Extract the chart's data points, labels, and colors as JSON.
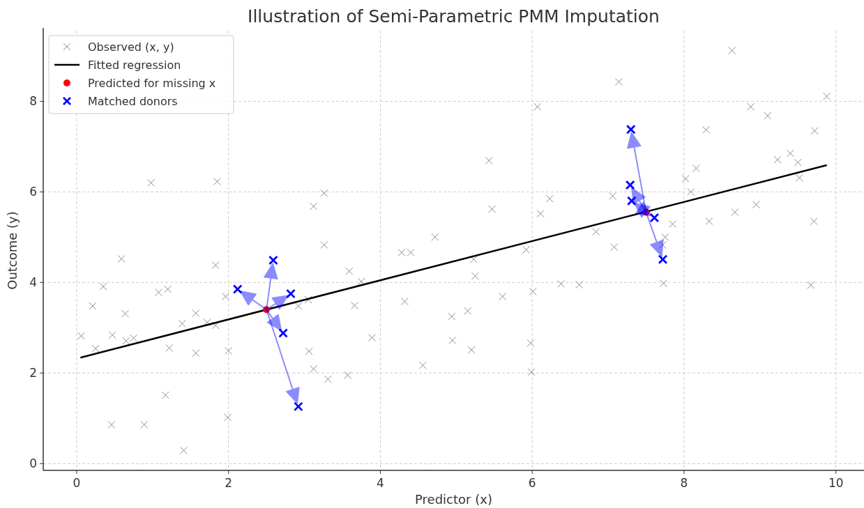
{
  "chart_data": {
    "type": "scatter",
    "title": "Illustration of Semi-Parametric PMM Imputation",
    "xlabel": "Predictor (x)",
    "ylabel": "Outcome (y)",
    "xlim": [
      -0.44,
      10.37
    ],
    "ylim": [
      -0.15,
      9.56
    ],
    "xticks": [
      0,
      2,
      4,
      6,
      8,
      10
    ],
    "yticks": [
      0,
      2,
      4,
      6,
      8
    ],
    "grid": true,
    "legend": "top left",
    "series": [
      {
        "name": "Observed (x, y)",
        "marker": "cross",
        "color": "#8c8c8c",
        "x": [
          0.98,
          1.85,
          0.59,
          1.83,
          0.35,
          1.08,
          1.2,
          1.96,
          0.21,
          0.64,
          1.57,
          1.39,
          1.72,
          1.83,
          0.06,
          0.47,
          0.65,
          0.75,
          0.25,
          1.22,
          1.57,
          2.0,
          2.92,
          3.05,
          1.17,
          1.99,
          0.46,
          0.89,
          1.41,
          3.12,
          3.26,
          3.26,
          3.06,
          3.12,
          3.31,
          3.57,
          3.59,
          3.66,
          3.75,
          3.89,
          4.28,
          4.4,
          4.32,
          4.56,
          4.72,
          4.94,
          4.95,
          5.15,
          5.2,
          5.23,
          5.25,
          5.43,
          5.47,
          5.61,
          5.92,
          6.01,
          5.98,
          5.99,
          6.07,
          6.11,
          6.23,
          6.38,
          6.62,
          7.14,
          8.63,
          9.88,
          8.88,
          9.1,
          8.29,
          9.72,
          9.4,
          9.23,
          9.5,
          8.16,
          9.52,
          8.02,
          8.09,
          7.06,
          8.95,
          8.67,
          8.33,
          9.71,
          7.85,
          6.84,
          7.75,
          7.08,
          7.72,
          7.73,
          9.67
        ],
        "values": [
          6.2,
          6.23,
          4.52,
          4.38,
          3.91,
          3.78,
          3.85,
          3.69,
          3.48,
          3.31,
          3.32,
          3.09,
          3.12,
          3.05,
          2.82,
          2.84,
          2.71,
          2.77,
          2.54,
          2.55,
          2.44,
          2.49,
          3.48,
          3.62,
          1.51,
          1.02,
          0.86,
          0.86,
          0.29,
          5.68,
          5.97,
          4.83,
          2.48,
          2.09,
          1.86,
          1.95,
          4.25,
          3.49,
          4.02,
          2.78,
          4.66,
          4.66,
          3.58,
          2.17,
          5.0,
          3.25,
          2.72,
          3.37,
          2.51,
          4.51,
          4.14,
          6.69,
          5.62,
          3.69,
          4.72,
          3.8,
          2.66,
          2.02,
          7.88,
          5.52,
          5.85,
          3.97,
          3.95,
          8.43,
          9.12,
          8.11,
          7.88,
          7.68,
          7.37,
          7.35,
          6.85,
          6.71,
          6.65,
          6.52,
          6.31,
          6.29,
          6.0,
          5.91,
          5.72,
          5.55,
          5.35,
          5.35,
          5.29,
          5.12,
          5.0,
          4.78,
          4.83,
          3.98,
          3.94
        ]
      },
      {
        "name": "Fitted regression",
        "type": "line",
        "marker": "none",
        "color": "#000000",
        "x": [
          0.05,
          9.88
        ],
        "values": [
          2.34,
          6.59
        ]
      },
      {
        "name": "Predicted for missing x",
        "marker": "circle",
        "color": "#ff0000",
        "x": [
          2.5,
          7.5
        ],
        "values": [
          3.4,
          5.55
        ]
      },
      {
        "name": "Matched donors",
        "marker": "cross",
        "color": "#0000ff",
        "x": [
          2.59,
          2.12,
          2.82,
          2.72,
          2.92,
          7.3,
          7.29,
          7.31,
          7.61,
          7.72
        ],
        "values": [
          4.49,
          3.85,
          3.75,
          2.88,
          1.26,
          7.38,
          6.15,
          5.8,
          5.43,
          4.51
        ]
      }
    ]
  }
}
